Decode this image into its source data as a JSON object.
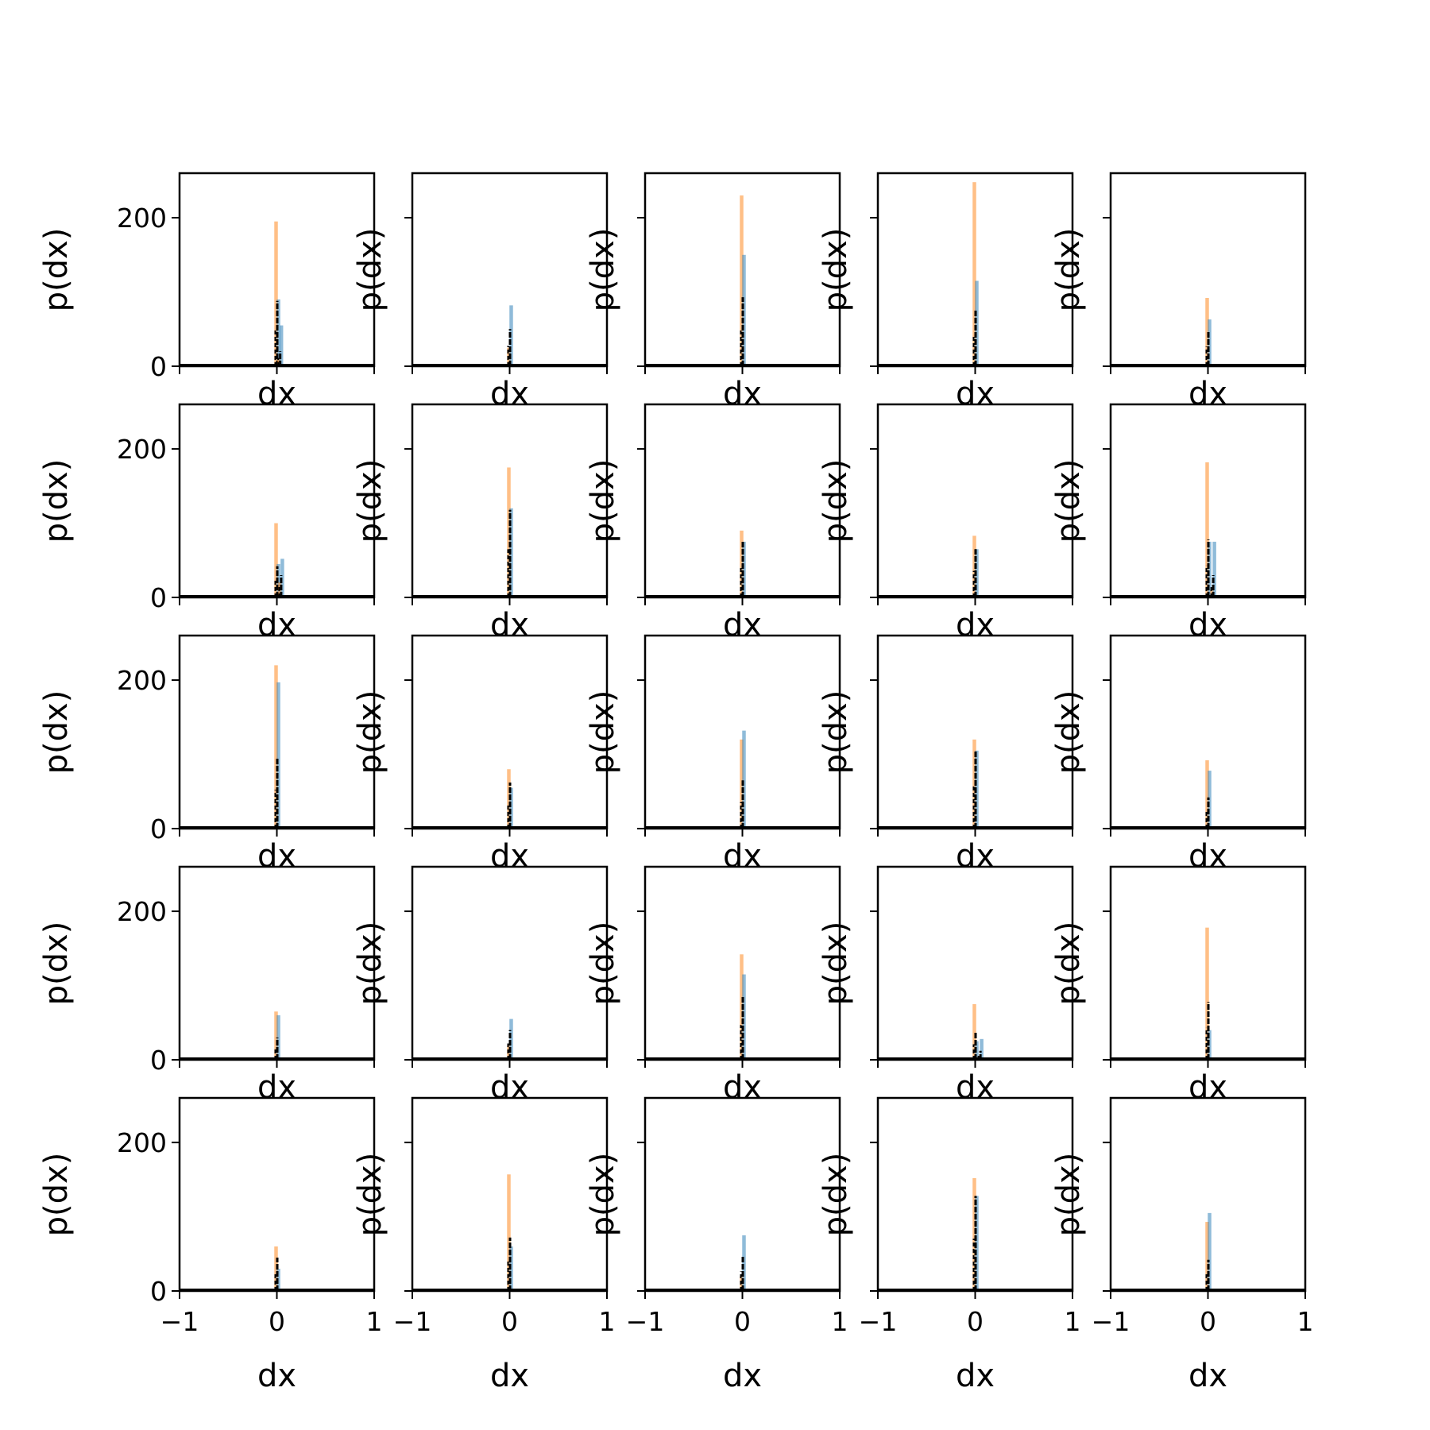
{
  "colors": {
    "series_blue": "#1f77b4",
    "series_orange": "#ff7f0e",
    "overlay": "#000000",
    "axes": "#000000",
    "background": "#ffffff"
  },
  "chart_data": {
    "type": "bar",
    "layout": "5x5 grid of histogram subplots with shared axes",
    "xlabel": "dx",
    "ylabel": "p(dx)",
    "xlim": [
      -1,
      1
    ],
    "ylim": [
      0,
      260
    ],
    "xticks": [
      -1,
      0,
      1
    ],
    "xtick_labels": [
      "−1",
      "0",
      "1"
    ],
    "yticks": [
      0,
      200
    ],
    "ytick_labels": [
      "0",
      "200"
    ],
    "grid": false,
    "legend": "none",
    "series_styles": [
      {
        "color": "#ff7f0e",
        "opacity": 0.5,
        "style": "bar"
      },
      {
        "color": "#1f77b4",
        "opacity": 0.5,
        "style": "bar"
      },
      {
        "color": "#000000",
        "opacity": 1.0,
        "style": "dashed-line"
      }
    ],
    "panels": [
      {
        "row": 0,
        "col": 0,
        "peaks": [
          {
            "x": 0.0,
            "orange": 195,
            "blue": 90,
            "black": 88
          },
          {
            "x": 0.03,
            "orange": 10,
            "blue": 55,
            "black": 20
          }
        ]
      },
      {
        "row": 0,
        "col": 1,
        "peaks": [
          {
            "x": 0.0,
            "orange": 25,
            "blue": 82,
            "black": 50
          }
        ]
      },
      {
        "row": 0,
        "col": 2,
        "peaks": [
          {
            "x": 0.0,
            "orange": 230,
            "blue": 150,
            "black": 93
          }
        ]
      },
      {
        "row": 0,
        "col": 3,
        "peaks": [
          {
            "x": 0.0,
            "orange": 248,
            "blue": 115,
            "black": 75
          }
        ]
      },
      {
        "row": 0,
        "col": 4,
        "peaks": [
          {
            "x": 0.0,
            "orange": 92,
            "blue": 63,
            "black": 48
          }
        ]
      },
      {
        "row": 1,
        "col": 0,
        "peaks": [
          {
            "x": 0.0,
            "orange": 100,
            "blue": 45,
            "black": 42
          },
          {
            "x": 0.04,
            "orange": 20,
            "blue": 52,
            "black": 30
          }
        ]
      },
      {
        "row": 1,
        "col": 1,
        "peaks": [
          {
            "x": 0.0,
            "orange": 175,
            "blue": 120,
            "black": 118
          }
        ]
      },
      {
        "row": 1,
        "col": 2,
        "peaks": [
          {
            "x": 0.0,
            "orange": 90,
            "blue": 75,
            "black": 75
          }
        ]
      },
      {
        "row": 1,
        "col": 3,
        "peaks": [
          {
            "x": 0.0,
            "orange": 83,
            "blue": 65,
            "black": 65
          }
        ]
      },
      {
        "row": 1,
        "col": 4,
        "peaks": [
          {
            "x": 0.0,
            "orange": 182,
            "blue": 75,
            "black": 78
          },
          {
            "x": 0.05,
            "orange": 10,
            "blue": 75,
            "black": 30
          }
        ]
      },
      {
        "row": 2,
        "col": 0,
        "peaks": [
          {
            "x": 0.0,
            "orange": 220,
            "blue": 197,
            "black": 95
          }
        ]
      },
      {
        "row": 2,
        "col": 1,
        "peaks": [
          {
            "x": 0.0,
            "orange": 80,
            "blue": 55,
            "black": 62
          }
        ]
      },
      {
        "row": 2,
        "col": 2,
        "peaks": [
          {
            "x": 0.0,
            "orange": 120,
            "blue": 132,
            "black": 65
          }
        ]
      },
      {
        "row": 2,
        "col": 3,
        "peaks": [
          {
            "x": 0.0,
            "orange": 120,
            "blue": 105,
            "black": 105
          }
        ]
      },
      {
        "row": 2,
        "col": 4,
        "peaks": [
          {
            "x": 0.0,
            "orange": 92,
            "blue": 78,
            "black": 42
          }
        ]
      },
      {
        "row": 3,
        "col": 0,
        "peaks": [
          {
            "x": 0.0,
            "orange": 65,
            "blue": 60,
            "black": 30
          }
        ]
      },
      {
        "row": 3,
        "col": 1,
        "peaks": [
          {
            "x": 0.0,
            "orange": 20,
            "blue": 55,
            "black": 40
          }
        ]
      },
      {
        "row": 3,
        "col": 2,
        "peaks": [
          {
            "x": 0.0,
            "orange": 142,
            "blue": 115,
            "black": 85
          }
        ]
      },
      {
        "row": 3,
        "col": 3,
        "peaks": [
          {
            "x": 0.0,
            "orange": 75,
            "blue": 25,
            "black": 38
          },
          {
            "x": 0.05,
            "orange": 5,
            "blue": 28,
            "black": 12
          }
        ]
      },
      {
        "row": 3,
        "col": 4,
        "peaks": [
          {
            "x": 0.0,
            "orange": 178,
            "blue": 40,
            "black": 78
          }
        ]
      },
      {
        "row": 4,
        "col": 0,
        "peaks": [
          {
            "x": 0.0,
            "orange": 60,
            "blue": 30,
            "black": 45
          }
        ]
      },
      {
        "row": 4,
        "col": 1,
        "peaks": [
          {
            "x": 0.0,
            "orange": 157,
            "blue": 60,
            "black": 72
          }
        ]
      },
      {
        "row": 4,
        "col": 2,
        "peaks": [
          {
            "x": 0.0,
            "orange": 20,
            "blue": 75,
            "black": 48
          }
        ]
      },
      {
        "row": 4,
        "col": 3,
        "peaks": [
          {
            "x": 0.0,
            "orange": 152,
            "blue": 128,
            "black": 128
          }
        ]
      },
      {
        "row": 4,
        "col": 4,
        "peaks": [
          {
            "x": 0.0,
            "orange": 93,
            "blue": 105,
            "black": 42
          }
        ]
      }
    ]
  }
}
